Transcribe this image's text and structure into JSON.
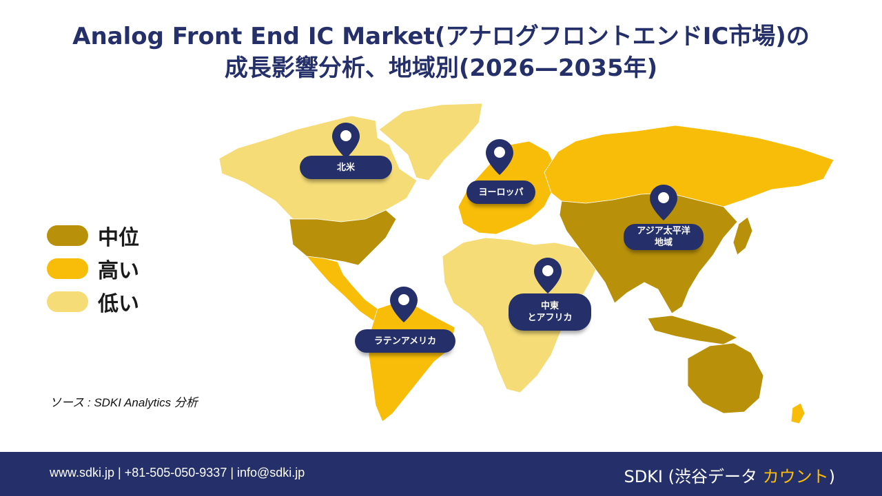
{
  "title": {
    "line1": "Analog Front End IC Market(アナログフロントエンドIC市場)の",
    "line2": "成長影響分析、地域別(2026—2035年)"
  },
  "colors": {
    "mid": "#b8900a",
    "high": "#f8bd08",
    "low": "#f5dc77",
    "navy": "#25306a"
  },
  "legend": {
    "items": [
      {
        "label": "中位",
        "color": "#b8900a"
      },
      {
        "label": "高い",
        "color": "#f8bd08"
      },
      {
        "label": "低い",
        "color": "#f5dc77"
      }
    ]
  },
  "regions": {
    "north_america": {
      "label": "北米",
      "level": "low"
    },
    "usa": {
      "level": "mid"
    },
    "europe": {
      "label": "ヨーロッパ",
      "level": "high"
    },
    "asia_pacific": {
      "label_line1": "アジア太平洋",
      "label_line2": "地域",
      "level": "mid"
    },
    "russia": {
      "level": "high"
    },
    "middle_east_africa": {
      "label_line1": "中東",
      "label_line2": "とアフリカ",
      "level": "low"
    },
    "latin_america": {
      "label": "ラテンアメリカ",
      "level": "high"
    },
    "australia": {
      "level": "mid"
    },
    "greenland": {
      "level": "low"
    }
  },
  "source": "ソース : SDKI Analytics 分析",
  "footer": {
    "contact": "www.sdki.jp | +81-505-050-9337 | info@sdki.jp",
    "brand_prefix": "SDKI (渋谷データ ",
    "brand_accent": "カウント",
    "brand_suffix": ")"
  }
}
